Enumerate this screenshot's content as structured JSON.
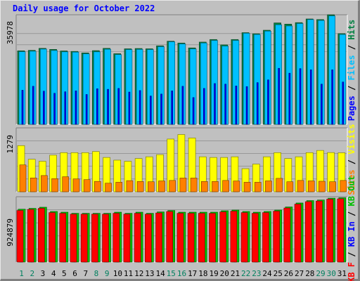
{
  "title": "Daily usage for October 2022",
  "chart_data": [
    {
      "type": "bar",
      "panel": "pages-files-hits",
      "categories": [
        "1",
        "2",
        "3",
        "4",
        "5",
        "6",
        "7",
        "8",
        "9",
        "10",
        "11",
        "12",
        "13",
        "14",
        "15",
        "16",
        "17",
        "18",
        "19",
        "20",
        "21",
        "22",
        "23",
        "24",
        "25",
        "26",
        "27",
        "28",
        "29",
        "30",
        "31"
      ],
      "weekend_days": [
        "1",
        "2",
        "8",
        "9",
        "15",
        "16",
        "22",
        "23",
        "29",
        "30"
      ],
      "max_label": "35978",
      "ylim": [
        0,
        35978
      ],
      "series": [
        {
          "name": "Hits",
          "color": "#008040",
          "values": [
            24140,
            24300,
            24950,
            24600,
            24100,
            23950,
            23450,
            24200,
            24950,
            23200,
            24800,
            24900,
            24800,
            25780,
            27300,
            26700,
            25100,
            27000,
            27850,
            26100,
            27850,
            30100,
            29750,
            30900,
            33300,
            32900,
            33400,
            34600,
            34400,
            35978,
            29800
          ]
        },
        {
          "name": "Files",
          "color": "#00c0ff",
          "values": [
            23850,
            24000,
            24700,
            24250,
            23800,
            23700,
            23150,
            23800,
            24650,
            22900,
            24550,
            24600,
            24550,
            25500,
            27100,
            26400,
            24750,
            26700,
            27550,
            25700,
            27550,
            29900,
            29500,
            30600,
            32700,
            32300,
            33100,
            34400,
            34100,
            35600,
            29500
          ]
        },
        {
          "name": "Pages",
          "color": "#0000ff",
          "values": [
            11200,
            12500,
            10900,
            10200,
            10700,
            11000,
            9800,
            11700,
            11500,
            11800,
            10600,
            11100,
            9300,
            9950,
            11000,
            12500,
            8800,
            11800,
            13400,
            13200,
            12600,
            12400,
            13700,
            14600,
            18400,
            16800,
            18300,
            17900,
            13200,
            17900,
            13900
          ]
        }
      ],
      "legend": [
        "Pages",
        "Files",
        "Hits"
      ],
      "legend_separator": " / "
    },
    {
      "type": "bar",
      "panel": "visits-sites",
      "categories": [
        "1",
        "2",
        "3",
        "4",
        "5",
        "6",
        "7",
        "8",
        "9",
        "10",
        "11",
        "12",
        "13",
        "14",
        "15",
        "16",
        "17",
        "18",
        "19",
        "20",
        "21",
        "22",
        "23",
        "24",
        "25",
        "26",
        "27",
        "28",
        "29",
        "30",
        "31"
      ],
      "max_label": "1279",
      "ylim": [
        0,
        1279
      ],
      "series": [
        {
          "name": "Visits",
          "color": "#ffff00",
          "values": [
            924,
            650,
            610,
            733,
            783,
            783,
            783,
            805,
            687,
            633,
            610,
            665,
            700,
            743,
            1055,
            1145,
            1076,
            700,
            687,
            687,
            700,
            463,
            553,
            700,
            783,
            665,
            700,
            783,
            827,
            785,
            780
          ]
        },
        {
          "name": "Sites",
          "color": "#ff8000",
          "values": [
            538,
            277,
            325,
            263,
            301,
            258,
            243,
            208,
            172,
            191,
            223,
            206,
            201,
            217,
            227,
            275,
            275,
            206,
            206,
            227,
            216,
            191,
            191,
            218,
            269,
            201,
            227,
            218,
            211,
            201,
            227
          ]
        }
      ],
      "legend": [
        "Sites",
        "Visits"
      ],
      "legend_separator": " / "
    },
    {
      "type": "bar",
      "panel": "kbytes",
      "categories": [
        "1",
        "2",
        "3",
        "4",
        "5",
        "6",
        "7",
        "8",
        "9",
        "10",
        "11",
        "12",
        "13",
        "14",
        "15",
        "16",
        "17",
        "18",
        "19",
        "20",
        "21",
        "22",
        "23",
        "24",
        "25",
        "26",
        "27",
        "28",
        "29",
        "30",
        "31"
      ],
      "max_label": "924879",
      "ylim": [
        0,
        924879
      ],
      "series": [
        {
          "name": "KB Out",
          "color": "#00c000",
          "values": [
            748000,
            760000,
            776000,
            716000,
            706000,
            690000,
            690000,
            690000,
            690000,
            706000,
            690000,
            706000,
            690000,
            710000,
            730000,
            706000,
            706000,
            706000,
            706000,
            726000,
            736000,
            716000,
            706000,
            716000,
            736000,
            780000,
            836000,
            870000,
            878000,
            904000,
            910000
          ]
        },
        {
          "name": "KB In",
          "color": "#0000ff",
          "values": [
            90000,
            76000,
            83000,
            83000,
            73000,
            78000,
            73000,
            73000,
            78000,
            73000,
            73000,
            73000,
            73000,
            80000,
            73000,
            73000,
            73000,
            73000,
            83000,
            78000,
            73000,
            73000,
            83000,
            78000,
            83000,
            83000,
            83000,
            78000,
            83000,
            73000,
            73000
          ]
        },
        {
          "name": "KB F",
          "color": "#ff0000",
          "values": [
            730000,
            745000,
            760000,
            700000,
            690000,
            678000,
            678000,
            678000,
            678000,
            690000,
            678000,
            690000,
            678000,
            695000,
            715000,
            690000,
            690000,
            690000,
            690000,
            710000,
            720000,
            700000,
            690000,
            700000,
            720000,
            765000,
            820000,
            855000,
            864000,
            890000,
            895000
          ]
        }
      ],
      "legend": [
        "KB F",
        "KB In",
        "KB Out"
      ],
      "legend_separator": " / "
    }
  ]
}
